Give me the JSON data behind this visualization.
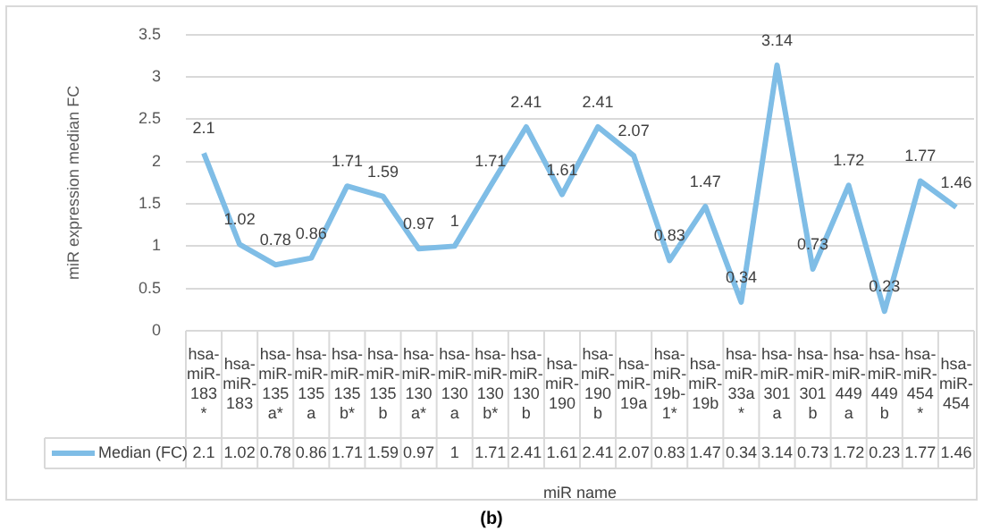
{
  "chart_data": {
    "type": "line",
    "xlabel": "miR name",
    "ylabel": "miR expression median FC",
    "categories": [
      "hsa-miR-183*",
      "hsa-miR-183",
      "hsa-miR-135a*",
      "hsa-miR-135a",
      "hsa-miR-135b*",
      "hsa-miR-135b",
      "hsa-miR-130a*",
      "hsa-miR-130a",
      "hsa-miR-130b*",
      "hsa-miR-130b",
      "hsa-miR-190",
      "hsa-miR-190b",
      "hsa-miR-19a",
      "hsa-miR-19b-1*",
      "hsa-miR-19b",
      "hsa-miR-33a*",
      "hsa-miR-301a",
      "hsa-miR-301b",
      "hsa-miR-449a",
      "hsa-miR-449b",
      "hsa-miR-454*",
      "hsa-miR-454"
    ],
    "series": [
      {
        "name": "Median (FC)",
        "color": "#7fbde6",
        "values": [
          2.1,
          1.02,
          0.78,
          0.86,
          1.71,
          1.59,
          0.97,
          1,
          1.71,
          2.41,
          1.61,
          2.41,
          2.07,
          0.83,
          1.47,
          0.34,
          3.14,
          0.73,
          1.72,
          0.23,
          1.77,
          1.46
        ],
        "value_labels": [
          "2.1",
          "1.02",
          "0.78",
          "0.86",
          "1.71",
          "1.59",
          "0.97",
          "1",
          "1.71",
          "2.41",
          "1.61",
          "2.41",
          "2.07",
          "0.83",
          "1.47",
          "0.34",
          "3.14",
          "0.73",
          "1.72",
          "0.23",
          "1.77",
          "1.46"
        ]
      }
    ],
    "ylim": [
      0,
      3.5
    ],
    "yticks": [
      0,
      0.5,
      1,
      1.5,
      2,
      2.5,
      3,
      3.5
    ],
    "grid": "y",
    "legend": "bottom",
    "data_labels": true,
    "marker": "none",
    "line_style": "solid",
    "annotations": [
      "(b)"
    ]
  }
}
